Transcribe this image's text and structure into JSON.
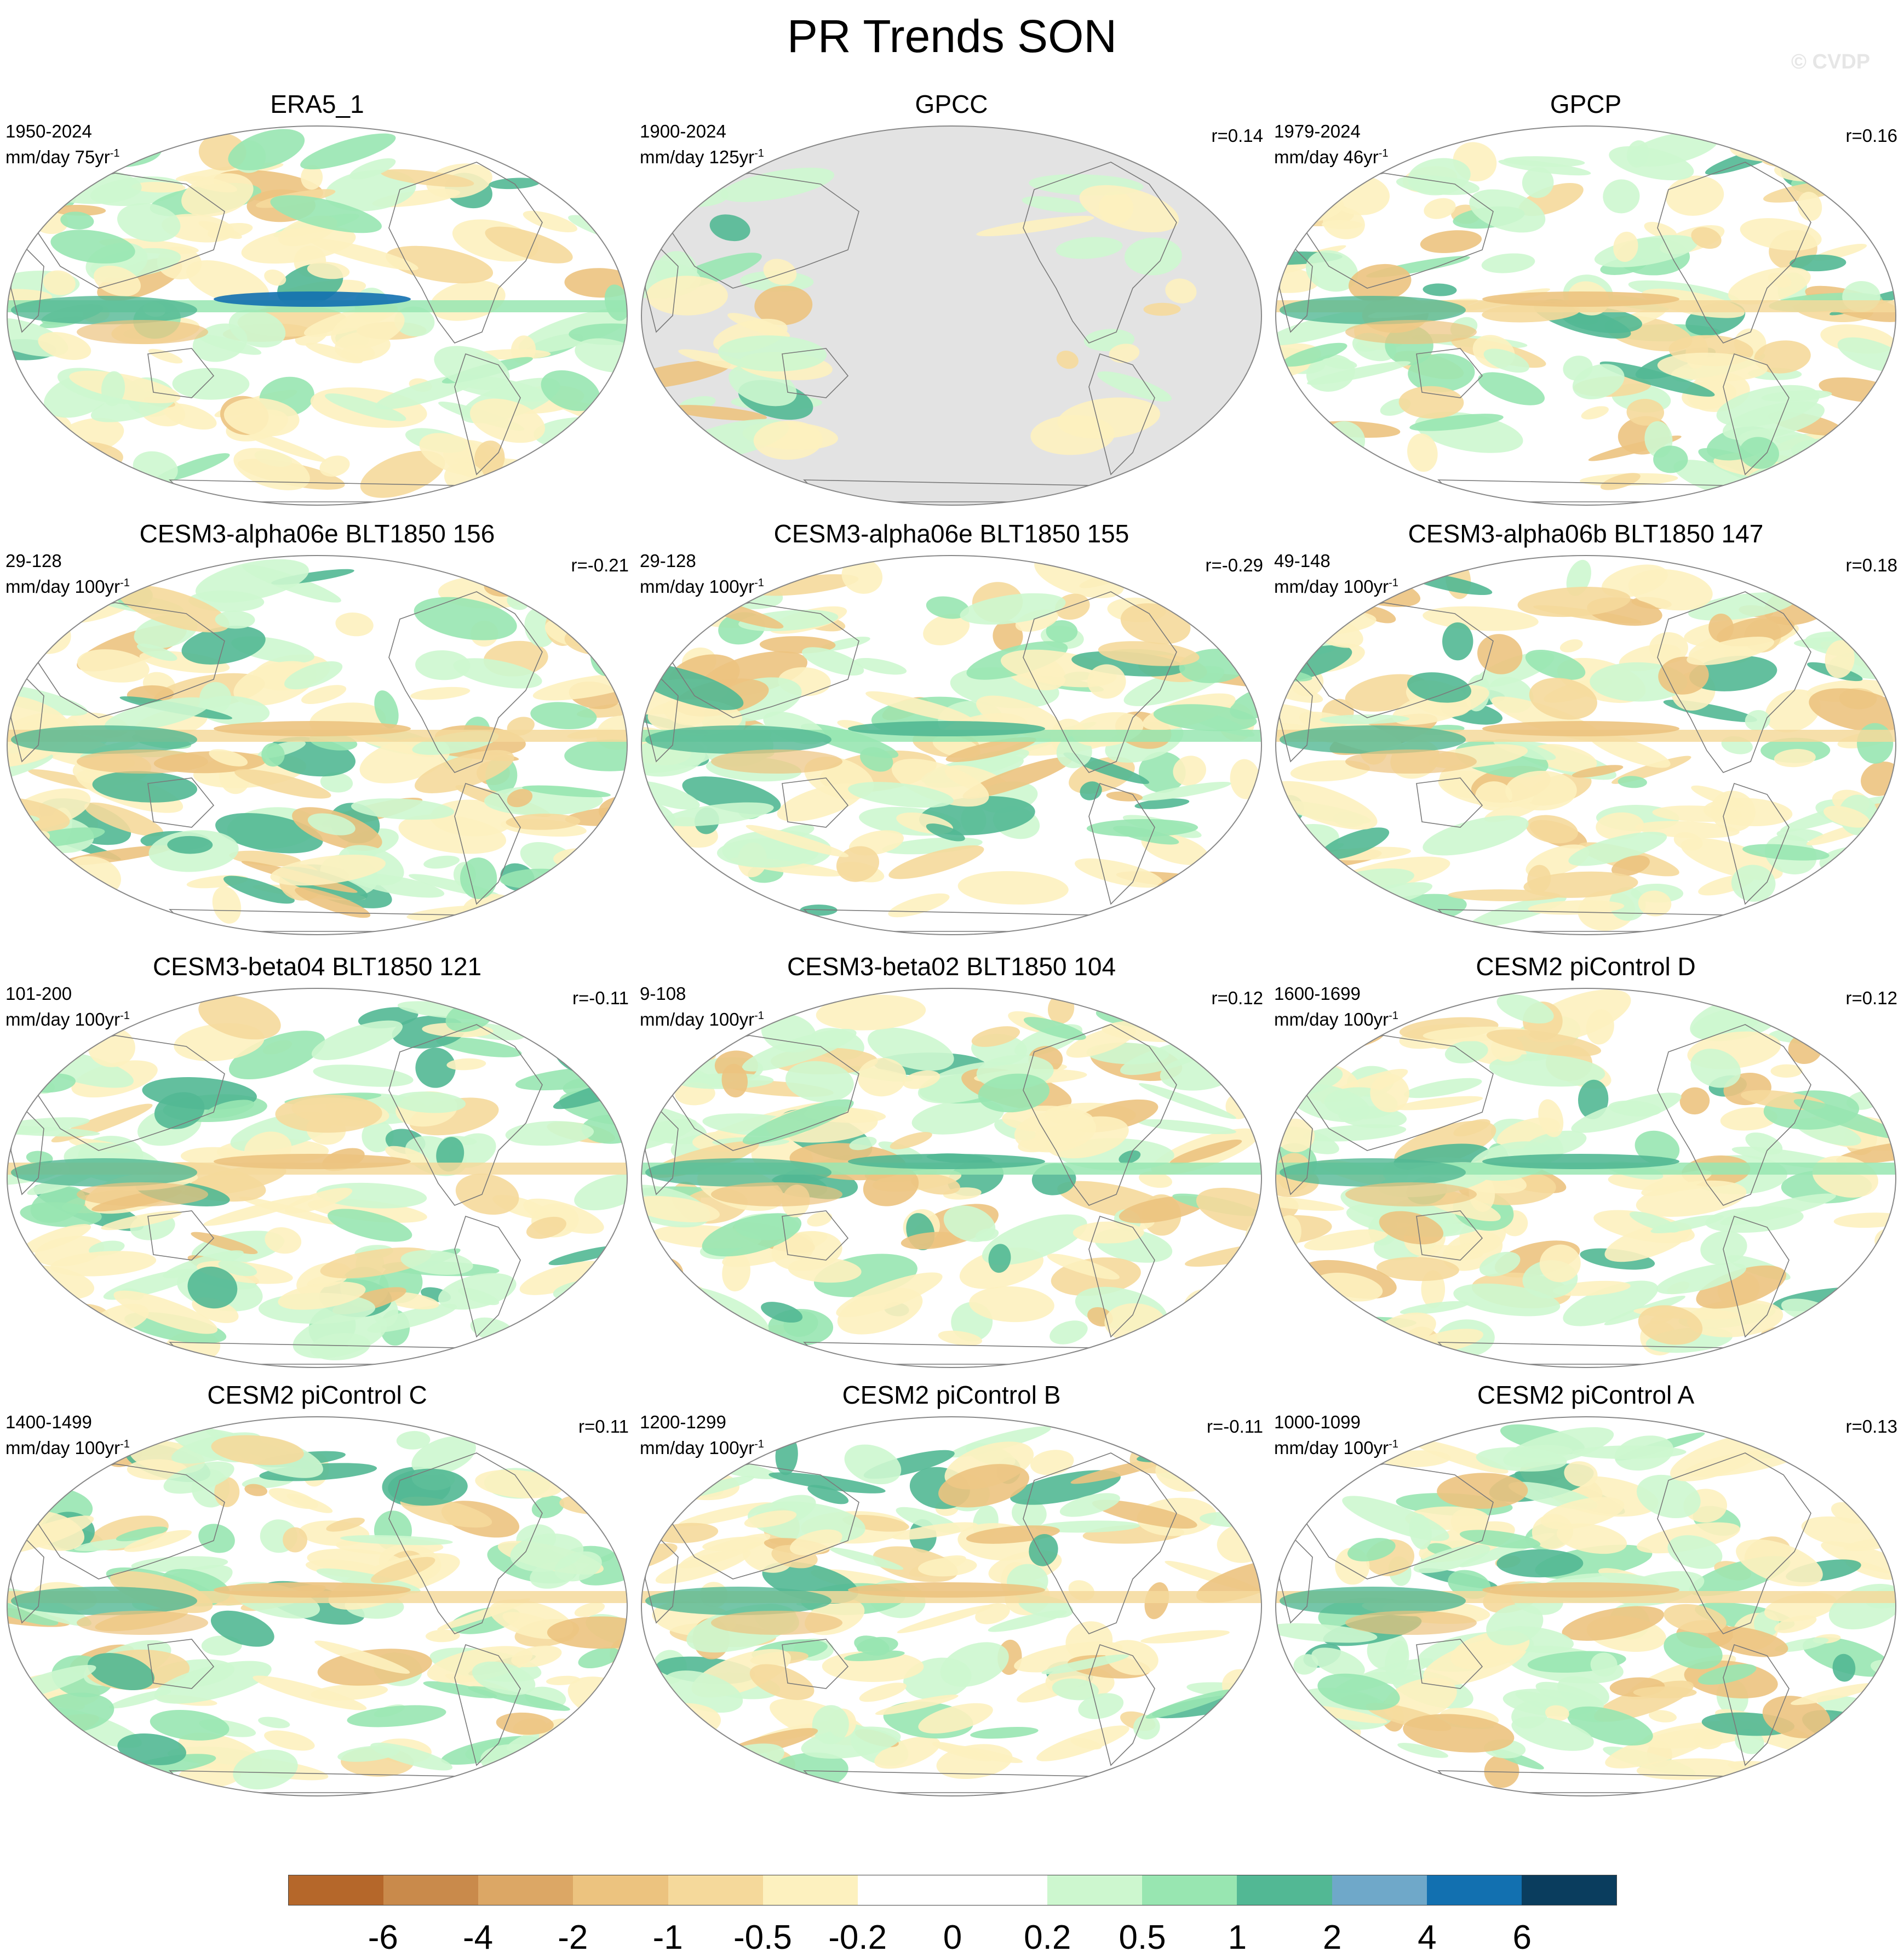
{
  "figure": {
    "title": "PR Trends SON",
    "watermark": "© CVDP"
  },
  "panels": [
    {
      "title": "ERA5_1",
      "period": "1950-2024",
      "units_prefix": "mm/day 75yr",
      "units_exp": "-1",
      "corr": "",
      "pattern": "era5"
    },
    {
      "title": "GPCC",
      "period": "1900-2024",
      "units_prefix": "mm/day 125yr",
      "units_exp": "-1",
      "corr": "r=0.14",
      "pattern": "gpcc"
    },
    {
      "title": "GPCP",
      "period": "1979-2024",
      "units_prefix": "mm/day 46yr",
      "units_exp": "-1",
      "corr": "r=0.16",
      "pattern": "gpcp"
    },
    {
      "title": "CESM3-alpha06e BLT1850 156",
      "period": "29-128",
      "units_prefix": "mm/day 100yr",
      "units_exp": "-1",
      "corr": "r=-0.21",
      "pattern": "m1"
    },
    {
      "title": "CESM3-alpha06e BLT1850 155",
      "period": "29-128",
      "units_prefix": "mm/day 100yr",
      "units_exp": "-1",
      "corr": "r=-0.29",
      "pattern": "m2"
    },
    {
      "title": "CESM3-alpha06b BLT1850 147",
      "period": "49-148",
      "units_prefix": "mm/day 100yr",
      "units_exp": "-1",
      "corr": "r=0.18",
      "pattern": "m3"
    },
    {
      "title": "CESM3-beta04 BLT1850 121",
      "period": "101-200",
      "units_prefix": "mm/day 100yr",
      "units_exp": "-1",
      "corr": "r=-0.11",
      "pattern": "m4"
    },
    {
      "title": "CESM3-beta02 BLT1850 104",
      "period": "9-108",
      "units_prefix": "mm/day 100yr",
      "units_exp": "-1",
      "corr": "r=0.12",
      "pattern": "m5"
    },
    {
      "title": "CESM2 piControl D",
      "period": "1600-1699",
      "units_prefix": "mm/day 100yr",
      "units_exp": "-1",
      "corr": "r=0.12",
      "pattern": "m6"
    },
    {
      "title": "CESM2 piControl C",
      "period": "1400-1499",
      "units_prefix": "mm/day 100yr",
      "units_exp": "-1",
      "corr": "r=0.11",
      "pattern": "m7"
    },
    {
      "title": "CESM2 piControl B",
      "period": "1200-1299",
      "units_prefix": "mm/day 100yr",
      "units_exp": "-1",
      "corr": "r=-0.11",
      "pattern": "m8"
    },
    {
      "title": "CESM2 piControl A",
      "period": "1000-1099",
      "units_prefix": "mm/day 100yr",
      "units_exp": "-1",
      "corr": "r=0.13",
      "pattern": "m9"
    }
  ],
  "colorbar": {
    "levels": [
      "-6",
      "-4",
      "-2",
      "-1",
      "-0.5",
      "-0.2",
      "0",
      "0.2",
      "0.5",
      "1",
      "2",
      "4",
      "6"
    ],
    "colors": [
      "#b5672a",
      "#c98a4b",
      "#dca765",
      "#ecc37f",
      "#f5d99b",
      "#fdf1bf",
      "#ffffff",
      "#ffffff",
      "#cdf7cf",
      "#98e6b1",
      "#52b894",
      "#6fa8c9",
      "#1270b0",
      "#0a3d5e"
    ]
  },
  "colors": {
    "missing_fill": "#e3e3e3",
    "coast": "#7a7a7a",
    "outline": "#888888"
  }
}
